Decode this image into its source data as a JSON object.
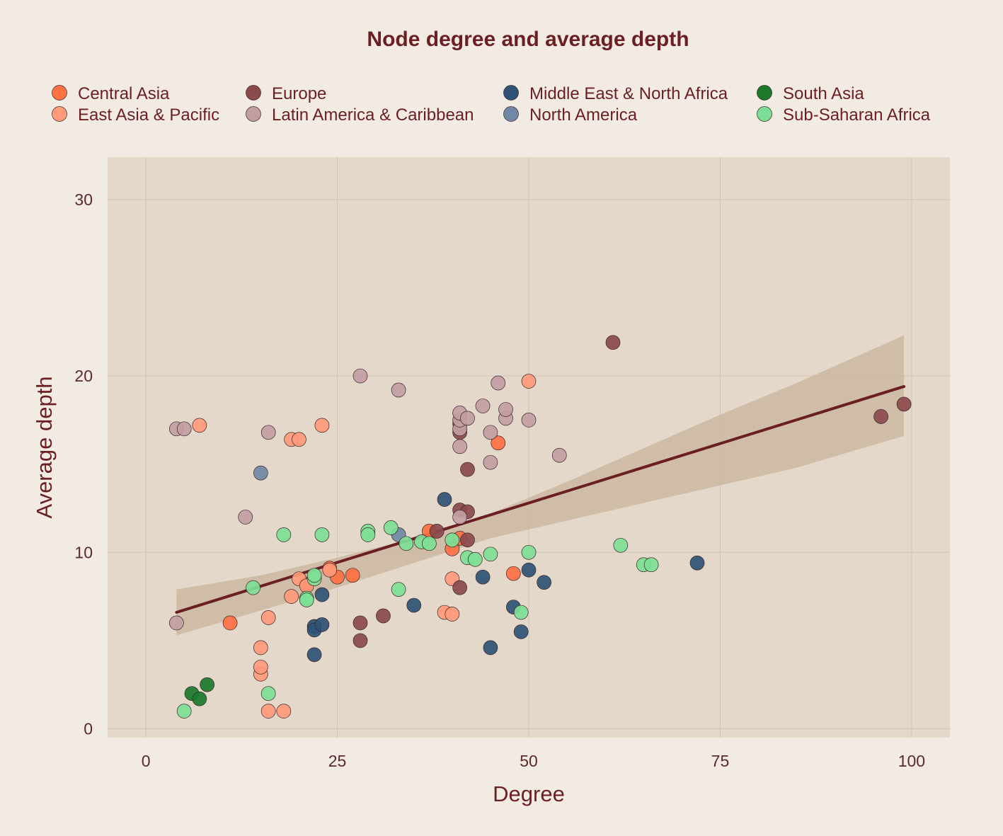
{
  "chart_data": {
    "type": "scatter",
    "title": "Node degree and average depth",
    "xlabel": "Degree",
    "ylabel": "Average depth",
    "xlim": [
      -5,
      105
    ],
    "ylim": [
      -0.5,
      32.4
    ],
    "xticks": [
      0,
      25,
      50,
      75,
      100
    ],
    "yticks": [
      0,
      10,
      20,
      30
    ],
    "grid": true,
    "legend_position": "top",
    "colors": {
      "background": "#f2ebe4",
      "panel": "#e4d8ca",
      "grid": "#d2c3b3",
      "text": "#6b1f22",
      "trend_line": "#6b1f22",
      "confidence_band": "#cdb9a2"
    },
    "series": [
      {
        "name": "Central Asia",
        "color": "#ff7043",
        "points": [
          [
            11,
            6
          ],
          [
            21,
            8.2
          ],
          [
            24,
            9.1
          ],
          [
            25,
            8.6
          ],
          [
            27,
            8.7
          ],
          [
            37,
            11.2
          ],
          [
            40,
            10.2
          ],
          [
            41,
            10.8
          ],
          [
            46,
            16.2
          ],
          [
            48,
            8.8
          ]
        ]
      },
      {
        "name": "East Asia & Pacific",
        "color": "#ff9a7a",
        "points": [
          [
            7,
            17.2
          ],
          [
            15,
            3.1
          ],
          [
            15,
            3.5
          ],
          [
            15,
            4.6
          ],
          [
            16,
            1
          ],
          [
            16,
            6.3
          ],
          [
            18,
            1
          ],
          [
            19,
            7.5
          ],
          [
            19,
            16.4
          ],
          [
            20,
            16.4
          ],
          [
            20,
            8.5
          ],
          [
            21,
            8.1
          ],
          [
            23,
            17.2
          ],
          [
            24,
            9
          ],
          [
            39,
            6.6
          ],
          [
            40,
            6.5
          ],
          [
            40,
            8.5
          ],
          [
            50,
            19.7
          ]
        ]
      },
      {
        "name": "Europe",
        "color": "#8b4a4c",
        "points": [
          [
            28,
            6
          ],
          [
            28,
            5
          ],
          [
            31,
            6.4
          ],
          [
            38,
            11.2
          ],
          [
            41,
            8
          ],
          [
            41,
            12.4
          ],
          [
            41,
            16.8
          ],
          [
            41,
            17.3
          ],
          [
            42,
            14.7
          ],
          [
            42,
            12.3
          ],
          [
            42,
            10.7
          ],
          [
            61,
            21.9
          ],
          [
            96,
            17.7
          ],
          [
            99,
            18.4
          ]
        ]
      },
      {
        "name": "Latin America & Caribbean",
        "color": "#c29ea3",
        "points": [
          [
            4,
            17
          ],
          [
            4,
            6
          ],
          [
            5,
            17
          ],
          [
            13,
            12
          ],
          [
            16,
            16.8
          ],
          [
            28,
            20
          ],
          [
            33,
            19.2
          ],
          [
            41,
            16
          ],
          [
            41,
            12
          ],
          [
            41,
            17
          ],
          [
            41,
            17.5
          ],
          [
            41,
            17.9
          ],
          [
            42,
            17.6
          ],
          [
            44,
            18.3
          ],
          [
            45,
            15.1
          ],
          [
            45,
            16.8
          ],
          [
            46,
            19.6
          ],
          [
            47,
            17.6
          ],
          [
            47,
            18.1
          ],
          [
            50,
            17.5
          ],
          [
            54,
            15.5
          ]
        ]
      },
      {
        "name": "Middle East & North Africa",
        "color": "#2f5376",
        "points": [
          [
            22,
            4.2
          ],
          [
            22,
            5.8
          ],
          [
            22,
            5.6
          ],
          [
            23,
            5.9
          ],
          [
            23,
            7.6
          ],
          [
            35,
            7
          ],
          [
            39,
            13
          ],
          [
            44,
            8.6
          ],
          [
            45,
            4.6
          ],
          [
            48,
            6.9
          ],
          [
            49,
            5.5
          ],
          [
            50,
            9
          ],
          [
            52,
            8.3
          ],
          [
            72,
            9.4
          ]
        ]
      },
      {
        "name": "North America",
        "color": "#7088a6",
        "points": [
          [
            15,
            14.5
          ],
          [
            33,
            11
          ]
        ]
      },
      {
        "name": "South Asia",
        "color": "#1b7a2c",
        "points": [
          [
            6,
            2
          ],
          [
            7,
            1.7
          ],
          [
            8,
            2.5
          ]
        ]
      },
      {
        "name": "Sub-Saharan Africa",
        "color": "#7ddf95",
        "points": [
          [
            5,
            1
          ],
          [
            14,
            8
          ],
          [
            16,
            2
          ],
          [
            18,
            11
          ],
          [
            21,
            7.4
          ],
          [
            21,
            7.3
          ],
          [
            22,
            8.5
          ],
          [
            22,
            8.7
          ],
          [
            23,
            11
          ],
          [
            29,
            11.2
          ],
          [
            29,
            11
          ],
          [
            32,
            11.4
          ],
          [
            33,
            7.9
          ],
          [
            34,
            10.5
          ],
          [
            36,
            10.6
          ],
          [
            37,
            10.5
          ],
          [
            40,
            10.7
          ],
          [
            42,
            9.7
          ],
          [
            43,
            9.6
          ],
          [
            45,
            9.9
          ],
          [
            49,
            6.6
          ],
          [
            50,
            10
          ],
          [
            62,
            10.4
          ],
          [
            65,
            9.3
          ],
          [
            66,
            9.3
          ]
        ]
      }
    ],
    "trend_line": {
      "x": [
        4,
        99
      ],
      "y": [
        6.6,
        19.4
      ]
    },
    "confidence_band": {
      "x": [
        4,
        15,
        25,
        35,
        40,
        45,
        55,
        65,
        75,
        85,
        99
      ],
      "upper": [
        7.9,
        8.7,
        9.7,
        10.8,
        11.4,
        12.2,
        14.0,
        15.9,
        17.8,
        19.6,
        22.3
      ],
      "lower": [
        5.3,
        6.7,
        8.0,
        9.4,
        10.1,
        10.8,
        11.8,
        12.8,
        13.8,
        14.8,
        16.6
      ]
    }
  }
}
